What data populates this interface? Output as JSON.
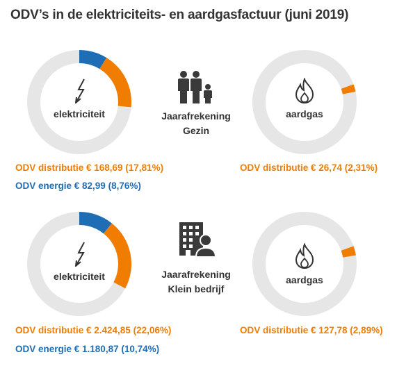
{
  "title": "ODV’s in de elektriciteits- en aardgasfactuur (juni 2019)",
  "colors": {
    "distributie": "#F07D00",
    "energie": "#1F6DB5",
    "rest": "#E6E6E6",
    "text": "#333333"
  },
  "chart_data": [
    {
      "type": "pie",
      "label": "elektriciteit",
      "segments": [
        {
          "name": "ODV energie",
          "amount": "€ 82,99",
          "value": 8.76,
          "color": "#1F6DB5"
        },
        {
          "name": "ODV distributie",
          "amount": "€ 168,69",
          "value": 17.81,
          "color": "#F07D00"
        }
      ],
      "legend": [
        {
          "text": "ODV distributie € 168,69 (17,81%)",
          "color": "#F07D00"
        },
        {
          "text": "ODV energie € 82,99 (8,76%)",
          "color": "#1F6DB5"
        }
      ]
    },
    {
      "type": "pie",
      "label": "aardgas",
      "segments": [
        {
          "name": "ODV distributie",
          "amount": "€ 26,74",
          "value": 2.31,
          "color": "#F07D00"
        }
      ],
      "legend": [
        {
          "text": "ODV distributie € 26,74 (2,31%)",
          "color": "#F07D00"
        }
      ]
    },
    {
      "type": "pie",
      "label": "elektriciteit",
      "segments": [
        {
          "name": "ODV energie",
          "amount": "€ 1.180,87",
          "value": 10.74,
          "color": "#1F6DB5"
        },
        {
          "name": "ODV distributie",
          "amount": "€ 2.424,85",
          "value": 22.06,
          "color": "#F07D00"
        }
      ],
      "legend": [
        {
          "text": "ODV distributie € 2.424,85 (22,06%)",
          "color": "#F07D00"
        },
        {
          "text": "ODV energie € 1.180,87 (10,74%)",
          "color": "#1F6DB5"
        }
      ]
    },
    {
      "type": "pie",
      "label": "aardgas",
      "segments": [
        {
          "name": "ODV distributie",
          "amount": "€ 127,78",
          "value": 2.89,
          "color": "#F07D00"
        }
      ],
      "legend": [
        {
          "text": "ODV distributie € 127,78 (2,89%)",
          "color": "#F07D00"
        }
      ]
    }
  ],
  "sections": [
    {
      "line1": "Jaarafrekening",
      "line2": "Gezin",
      "icon": "family-icon"
    },
    {
      "line1": "Jaarafrekening",
      "line2": "Klein bedrijf",
      "icon": "business-icon"
    }
  ]
}
